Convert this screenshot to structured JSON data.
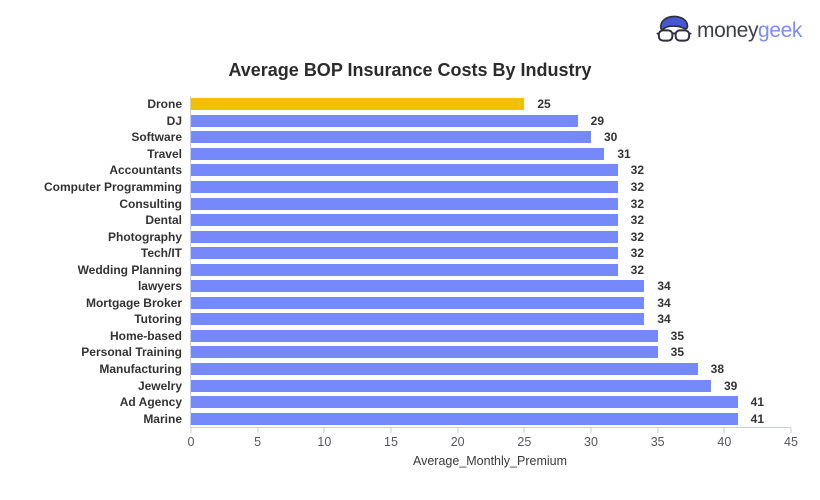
{
  "logo": {
    "brand_prefix": "money",
    "brand_suffix": "geek",
    "icon": "geek-face-icon"
  },
  "chart_data": {
    "type": "bar",
    "orientation": "horizontal",
    "title": "Average BOP Insurance Costs By Industry",
    "xlabel": "Average_Monthly_Premium",
    "categories": [
      "Drone",
      "DJ",
      "Software",
      "Travel",
      "Accountants",
      "Computer Programming",
      "Consulting",
      "Dental",
      "Photography",
      "Tech/IT",
      "Wedding Planning",
      "lawyers",
      "Mortgage Broker",
      "Tutoring",
      "Home-based",
      "Personal Training",
      "Manufacturing",
      "Jewelry",
      "Ad Agency",
      "Marine"
    ],
    "values": [
      25,
      29,
      30,
      31,
      32,
      32,
      32,
      32,
      32,
      32,
      32,
      34,
      34,
      34,
      35,
      35,
      38,
      39,
      41,
      41
    ],
    "xlim": [
      0,
      45
    ],
    "xticks": [
      0,
      5,
      10,
      15,
      20,
      25,
      30,
      35,
      40,
      45
    ],
    "grid": false,
    "value_labels": true,
    "legend": null,
    "bar_color": "#7689fa",
    "highlight_color": "#f3c000",
    "highlight_index": 0
  },
  "colors": {
    "bar_blue": "#7689fa",
    "bar_gold": "#f3c000",
    "axis_line": "#c9cdd9",
    "tick_text": "#55575c",
    "label_text": "#333333",
    "title_text": "#2b2b2b",
    "logo_dark": "#3d4046",
    "logo_blue": "#7c8cf2"
  }
}
